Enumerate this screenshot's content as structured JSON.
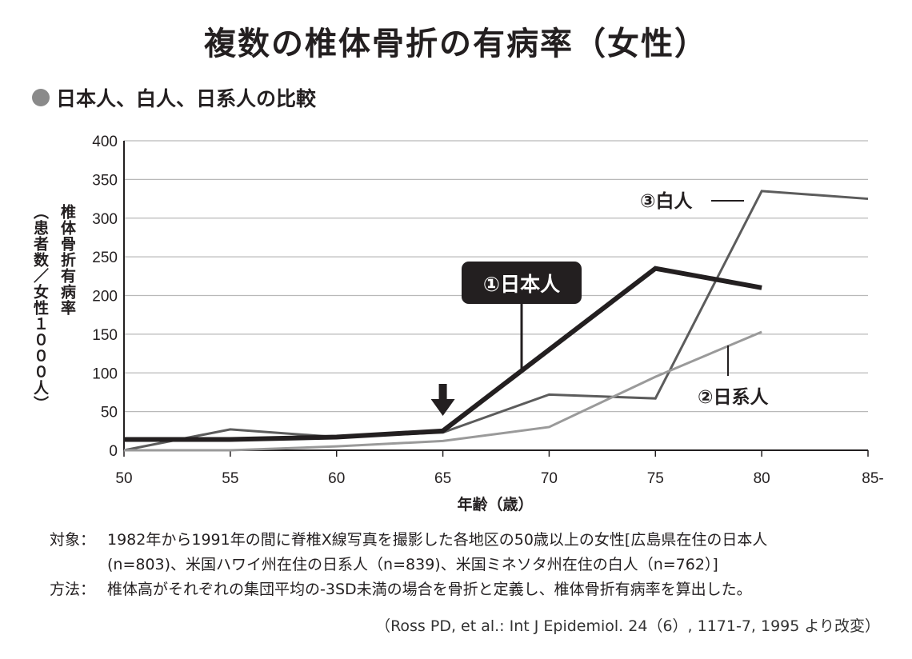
{
  "title": "複数の椎体骨折の有病率（女性）",
  "subtitle": "日本人、白人、日系人の比較",
  "ylabel_outer": "（患者数／女性１０００人）",
  "ylabel_inner": "椎体骨折有病率",
  "notes": [
    {
      "label": "対象：",
      "lines": [
        "1982年から1991年の間に脊椎X線写真を撮影した各地区の50歳以上の女性[広島県在住の日本人",
        "(n=803)、米国ハワイ州在住の日系人（n=839)、米国ミネソタ州在住の白人（n=762）]"
      ]
    },
    {
      "label": "方法：",
      "lines": [
        "椎体高がそれぞれの集団平均の-3SD未満の場合を骨折と定義し、椎体骨折有病率を算出した。"
      ]
    }
  ],
  "source": "（Ross PD, et al.: Int J Epidemiol. 24（6）, 1171-7, 1995 より改変）",
  "chart_data": {
    "type": "line",
    "xlabel": "年齢（歳）",
    "x_tick_labels": [
      "50",
      "55",
      "60",
      "65",
      "70",
      "75",
      "80",
      "85-"
    ],
    "x_ticks": [
      50,
      55,
      60,
      65,
      70,
      75,
      80,
      85
    ],
    "xlim": [
      50,
      85
    ],
    "ylim": [
      0,
      400
    ],
    "y_ticks": [
      0,
      50,
      100,
      150,
      200,
      250,
      300,
      350,
      400
    ],
    "grid": true,
    "annotation_arrow_x": 65,
    "series": [
      {
        "name": "①日本人",
        "color": "#231f20",
        "points": [
          [
            50,
            14
          ],
          [
            55,
            14
          ],
          [
            60,
            17
          ],
          [
            65,
            25
          ],
          [
            70,
            130
          ],
          [
            75,
            235
          ],
          [
            80,
            210
          ]
        ]
      },
      {
        "name": "②日系人",
        "color": "#9a9a9a",
        "points": [
          [
            50,
            0
          ],
          [
            55,
            0
          ],
          [
            60,
            5
          ],
          [
            65,
            12
          ],
          [
            70,
            30
          ],
          [
            75,
            95
          ],
          [
            80,
            153
          ]
        ]
      },
      {
        "name": "③白人",
        "color": "#5c5c5c",
        "points": [
          [
            50,
            0
          ],
          [
            55,
            27
          ],
          [
            60,
            17
          ],
          [
            65,
            23
          ],
          [
            70,
            72
          ],
          [
            75,
            67
          ],
          [
            80,
            335
          ],
          [
            85,
            325
          ]
        ]
      }
    ]
  }
}
